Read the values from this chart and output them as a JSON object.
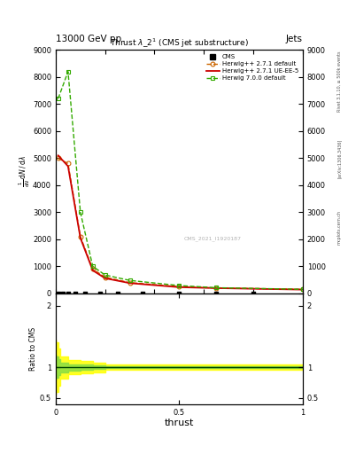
{
  "title": "Thrust $\\lambda\\_2^1$ (CMS jet substructure)",
  "header_left": "13000 GeV pp",
  "header_right": "Jets",
  "xlabel": "thrust",
  "ylabel_ratio": "Ratio to CMS",
  "watermark": "CMS_2021_I1920187",
  "rivet_text": "Rivet 3.1.10, ≥ 500k events",
  "arxiv_text": "[arXiv:1306.3436]",
  "mcplots_text": "mcplots.cern.ch",
  "hw271_default_x": [
    0.01,
    0.05,
    0.1,
    0.15,
    0.2,
    0.3,
    0.5,
    0.65,
    1.0
  ],
  "hw271_default_y": [
    5000,
    4800,
    2100,
    900,
    600,
    400,
    250,
    200,
    150
  ],
  "hw271_default_color": "#cc6600",
  "hw271_default_label": "Herwig++ 2.7.1 default",
  "hw271_ueee5_x": [
    0.01,
    0.05,
    0.1,
    0.15,
    0.2,
    0.3,
    0.5,
    0.65,
    1.0
  ],
  "hw271_ueee5_y": [
    5100,
    4700,
    2050,
    850,
    560,
    380,
    230,
    195,
    140
  ],
  "hw271_ueee5_color": "#cc0000",
  "hw271_ueee5_label": "Herwig++ 2.7.1 UE-EE-5",
  "hw700_default_x": [
    0.01,
    0.05,
    0.1,
    0.15,
    0.2,
    0.3,
    0.5,
    0.65,
    1.0
  ],
  "hw700_default_y": [
    7200,
    8200,
    3000,
    1000,
    680,
    480,
    290,
    210,
    150
  ],
  "hw700_default_color": "#33aa00",
  "hw700_default_label": "Herwig 7.0.0 default",
  "cms_x": [
    0.01,
    0.03,
    0.05,
    0.08,
    0.12,
    0.18,
    0.25,
    0.35,
    0.5,
    0.65,
    0.8
  ],
  "cms_y": [
    0,
    0,
    0,
    0,
    0,
    0,
    0,
    0,
    0,
    0,
    0
  ],
  "ylim_main": [
    0,
    9000
  ],
  "ylim_ratio": [
    0.4,
    2.2
  ],
  "xlim": [
    0.0,
    1.0
  ],
  "ratio_yellow_band_x": [
    0.0,
    0.01,
    0.02,
    0.05,
    0.1,
    0.15,
    0.2,
    1.0
  ],
  "ratio_yellow_band_y_low": [
    0.55,
    0.6,
    0.7,
    0.82,
    0.88,
    0.9,
    0.92,
    0.96
  ],
  "ratio_yellow_band_y_high": [
    1.45,
    1.4,
    1.3,
    1.18,
    1.12,
    1.1,
    1.08,
    1.04
  ],
  "ratio_green_band_x": [
    0.0,
    0.01,
    0.02,
    0.05,
    0.1,
    0.15,
    0.2,
    1.0
  ],
  "ratio_green_band_y_low": [
    0.8,
    0.83,
    0.87,
    0.92,
    0.95,
    0.96,
    0.97,
    0.98
  ],
  "ratio_green_band_y_high": [
    1.2,
    1.17,
    1.13,
    1.08,
    1.05,
    1.04,
    1.03,
    1.02
  ],
  "yticks_main": [
    0,
    1000,
    2000,
    3000,
    4000,
    5000,
    6000,
    7000,
    8000,
    9000
  ],
  "ytick_labels_main": [
    "0",
    "1000",
    "2000",
    "3000",
    "4000",
    "5000",
    "6000",
    "7000",
    "8000",
    "9000"
  ],
  "yticks_ratio": [
    0.5,
    1.0,
    2.0
  ],
  "ytick_labels_ratio": [
    "0.5",
    "1",
    "2"
  ]
}
